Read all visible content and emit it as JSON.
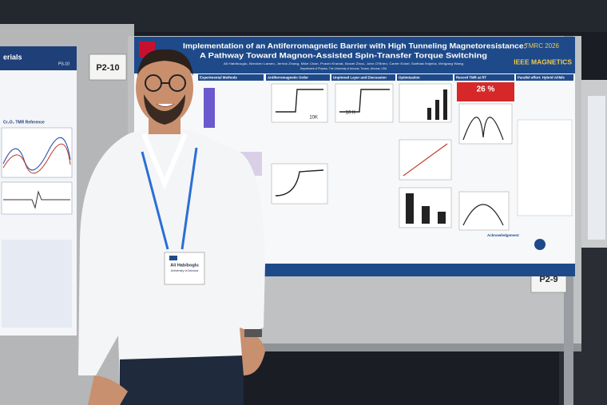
{
  "signs": {
    "left": "P2-10",
    "right": "P2-9"
  },
  "left_poster": {
    "heading": "erials",
    "tag": "PS-10",
    "section": "Cr₂O₃ TMR Reference"
  },
  "poster": {
    "title_line1": "Implementation of an Antiferromagnetic Barrier with High Tunneling Magnetoresistance:",
    "title_line2": "A Pathway Toward Magnon-Assisted Spin-Transfer Torque Switching",
    "authors": "Ali Habibouglu, Brecken Larsen, Jerrick Zhang, Mike Chan, Pravin Khanal, Bowei Zhou, John O'Brien, Carter Eckel, Sarthak Hajnha, Weigang Wang",
    "affiliation": "Department of Physics, The University of Arizona, Tucson, Arizona, USA",
    "conference": "TMRC 2026",
    "society": "IEEE MAGNETICS",
    "sections": [
      "Experimental Methods",
      "Antiferromagnetic Order",
      "Unpinned Layer and Discussion",
      "Optimization",
      "Record TMR at RT",
      "Parallel effort: Hybrid AFM/e"
    ],
    "record_value": "26 %",
    "plot_labels": [
      "10K",
      "10 K"
    ],
    "acknowledgement": "Acknowledgement"
  },
  "badge": {
    "name": "Ali Habiboglu",
    "affiliation": "University of Arizona"
  }
}
